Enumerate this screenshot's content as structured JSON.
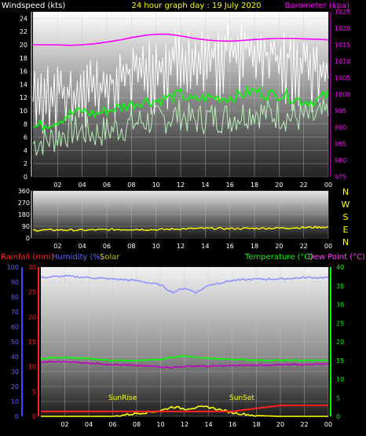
{
  "header": {
    "left": "Windspeed (kts)",
    "center": "24 hour graph day : 19 July 2020",
    "right": "Barometer (kpa)"
  },
  "colors": {
    "white": "#ffffff",
    "magenta": "#ff00ff",
    "yellow": "#ffff00",
    "green": "#00ff00",
    "lightgreen": "#b8f2b8",
    "red": "#ff2020",
    "blue": "#4040ff",
    "lavender": "#9090ff",
    "purple": "#c000c0"
  },
  "chart_data": [
    {
      "type": "line",
      "title": "24 hour graph day : 19 July 2020",
      "ylabel": "Windspeed (kts)",
      "y2label": "Barometer (kpa)",
      "x_ticks": [
        "02",
        "04",
        "06",
        "08",
        "10",
        "12",
        "14",
        "16",
        "18",
        "20",
        "22",
        "00"
      ],
      "ylim": [
        0,
        25
      ],
      "y_ticks": [
        0,
        2,
        4,
        6,
        8,
        10,
        12,
        14,
        16,
        18,
        20,
        22,
        24
      ],
      "y2lim": [
        975,
        1025
      ],
      "y2_ticks": [
        975,
        980,
        985,
        990,
        995,
        1000,
        1005,
        1010,
        1015,
        1020,
        1025
      ],
      "hours": [
        0,
        1,
        2,
        3,
        4,
        5,
        6,
        7,
        8,
        9,
        10,
        11,
        12,
        13,
        14,
        15,
        16,
        17,
        18,
        19,
        20,
        21,
        22,
        23,
        24
      ],
      "series": [
        {
          "role": "gust",
          "color": "white",
          "axis": "left",
          "values": [
            12,
            13,
            14,
            12,
            15,
            14,
            14,
            15,
            16,
            17,
            17,
            18,
            19,
            18,
            19,
            19,
            20,
            20,
            19,
            19,
            18,
            18,
            18,
            17,
            17
          ]
        },
        {
          "role": "average",
          "color": "green",
          "axis": "left",
          "values": [
            7.5,
            8,
            8.5,
            9.5,
            10,
            9.5,
            10,
            10.5,
            11,
            11.5,
            11.5,
            12,
            12.5,
            11.5,
            12,
            12,
            12,
            12.5,
            13,
            12.5,
            12.5,
            12,
            11.5,
            11.5,
            12.5
          ]
        },
        {
          "role": "minimum",
          "color": "lightgreen",
          "axis": "left",
          "values": [
            5,
            5.5,
            6,
            7,
            7,
            6.5,
            7,
            7.5,
            8,
            8.5,
            8.5,
            9,
            9.5,
            8.5,
            9,
            9,
            9,
            9.5,
            10,
            9.5,
            9.5,
            9,
            9,
            9,
            9.5
          ]
        },
        {
          "role": "barometer",
          "color": "magenta",
          "axis": "right",
          "values": [
            1015,
            1015,
            1015,
            1014.8,
            1015,
            1015.3,
            1015.8,
            1016.4,
            1017.2,
            1017.8,
            1018.2,
            1018.2,
            1017.7,
            1017,
            1016.5,
            1016.2,
            1016.1,
            1016.3,
            1016.6,
            1016.8,
            1016.9,
            1016.9,
            1016.8,
            1016.7,
            1016.5
          ]
        }
      ]
    },
    {
      "type": "line",
      "x_ticks": [
        "02",
        "04",
        "06",
        "08",
        "10",
        "12",
        "14",
        "16",
        "18",
        "20",
        "22",
        "00"
      ],
      "ylim": [
        0,
        360
      ],
      "y_ticks": [
        0,
        90,
        180,
        270,
        360
      ],
      "compass": [
        "N",
        "W",
        "S",
        "E",
        "N"
      ],
      "hours": [
        0,
        2,
        4,
        6,
        8,
        10,
        12,
        14,
        16,
        18,
        20,
        22,
        24
      ],
      "series": [
        {
          "role": "direction",
          "color": "yellow",
          "values": [
            60,
            62,
            60,
            64,
            66,
            64,
            70,
            74,
            72,
            74,
            76,
            80,
            84
          ]
        }
      ]
    },
    {
      "type": "line",
      "legend": {
        "rainfall": "Rainfall (mm)",
        "humidity": "Humidity (%)",
        "solar": "Solar",
        "temperature": "Temperature (°C)",
        "dewpoint": "Dew Point (°C)"
      },
      "x_ticks": [
        "02",
        "04",
        "06",
        "08",
        "10",
        "12",
        "14",
        "16",
        "18",
        "20",
        "22",
        "00"
      ],
      "ylim": [
        0,
        100
      ],
      "y_ticks": [
        0,
        10,
        20,
        30,
        40,
        50,
        60,
        70,
        80,
        90,
        100
      ],
      "rain_ticks": [
        0,
        5,
        10,
        15,
        20,
        25,
        30
      ],
      "y2lim": [
        0,
        40
      ],
      "y2_ticks": [
        0,
        5,
        10,
        15,
        20,
        25,
        30,
        35,
        40
      ],
      "annotations": {
        "sunrise": "SunRise",
        "sunset": "SunSet"
      },
      "hours": [
        0,
        2,
        4,
        6,
        8,
        10,
        11,
        12,
        13,
        14,
        16,
        18,
        20,
        22,
        24
      ],
      "series": [
        {
          "role": "humidity",
          "color": "lavender",
          "axis": "left",
          "values": [
            93,
            94,
            93,
            92,
            91,
            88,
            83,
            86,
            83,
            88,
            91,
            92,
            92,
            93,
            93
          ]
        },
        {
          "role": "temperature",
          "color": "green",
          "axis": "right",
          "values": [
            15.5,
            15.8,
            15.4,
            15,
            15,
            15.2,
            15.8,
            16.3,
            15.7,
            15.5,
            15.3,
            15.1,
            15,
            15,
            15
          ]
        },
        {
          "role": "dewpoint",
          "color": "purple",
          "axis": "right",
          "values": [
            14.5,
            14.7,
            14.3,
            13.9,
            13.6,
            13.3,
            13.1,
            13.4,
            13.5,
            13.4,
            13.6,
            13.7,
            13.8,
            13.9,
            14.1
          ]
        },
        {
          "role": "solar",
          "color": "yellow",
          "axis": "right",
          "values": [
            0,
            0,
            0,
            0,
            0.8,
            1.5,
            2.6,
            2,
            2.4,
            2.5,
            1,
            0.2,
            0,
            0,
            0
          ]
        },
        {
          "role": "rainfall",
          "color": "red",
          "axis": "rain",
          "values": [
            1,
            1,
            1,
            1,
            1,
            1,
            1,
            1,
            1,
            1,
            1,
            1.6,
            2.2,
            2.2,
            2.2
          ]
        }
      ]
    }
  ]
}
